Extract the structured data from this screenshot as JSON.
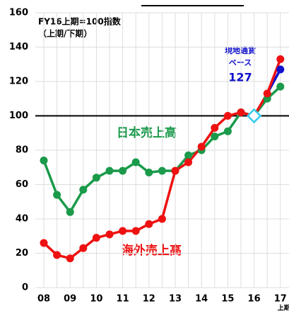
{
  "chart_data": {
    "type": "line",
    "subtitle": [
      "FY16上期=100指数",
      "（上期/下期）"
    ],
    "categories": [
      "08",
      null,
      "09",
      null,
      "10",
      null,
      "11",
      null,
      "12",
      null,
      "13",
      null,
      "14",
      null,
      "15",
      null,
      "16",
      null,
      "17"
    ],
    "x_note": "上期",
    "series": [
      {
        "name": "日本売上高",
        "color": "#1a9a4a",
        "values": [
          74,
          54,
          44,
          57,
          64,
          68,
          68,
          73,
          67,
          68,
          68,
          77,
          80,
          88,
          91,
          102,
          100,
          110,
          117
        ]
      },
      {
        "name": "海外売上高",
        "color": "#ee1111",
        "values": [
          26,
          19,
          17,
          23,
          29,
          31,
          33,
          33,
          37,
          40,
          68,
          73,
          82,
          93,
          100,
          102,
          100,
          113,
          133
        ]
      },
      {
        "color": "#1111cc",
        "values": [
          null,
          null,
          null,
          null,
          null,
          null,
          null,
          null,
          null,
          null,
          null,
          null,
          null,
          null,
          null,
          null,
          null,
          113,
          127
        ],
        "value_labels": [
          null,
          null,
          null,
          null,
          null,
          null,
          null,
          null,
          null,
          null,
          null,
          null,
          null,
          null,
          null,
          null,
          null,
          null,
          "127"
        ]
      }
    ],
    "annotations": [
      "現地通貨",
      "ベース"
    ],
    "refline": 100,
    "ylim": [
      0,
      160
    ],
    "yticks": [
      0,
      20,
      40,
      60,
      80,
      100,
      120,
      140,
      160
    ],
    "grid": true
  }
}
